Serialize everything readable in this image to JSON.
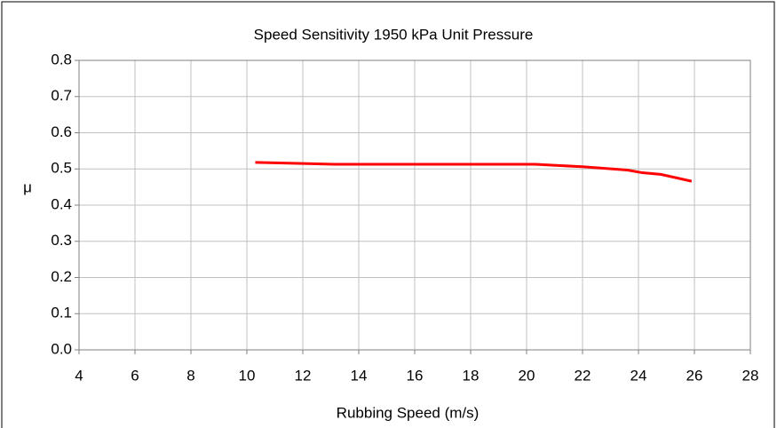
{
  "chart_data": {
    "type": "line",
    "title": "Speed Sensitivity 1950 kPa Unit Pressure",
    "x_label": "Rubbing Speed (m/s)",
    "y_label": "μ",
    "series": [
      {
        "name": "μ",
        "color": "#ff0000",
        "x": [
          10.3,
          12,
          13.1,
          20.3,
          22,
          23.6,
          24.1,
          24.8,
          25.9
        ],
        "values": [
          0.518,
          0.515,
          0.513,
          0.513,
          0.506,
          0.497,
          0.49,
          0.485,
          0.466
        ]
      }
    ],
    "xlim": [
      4,
      28
    ],
    "xticks": [
      4,
      6,
      8,
      10,
      12,
      14,
      16,
      18,
      20,
      22,
      24,
      26,
      28
    ],
    "ylim": [
      0,
      0.8
    ],
    "yticks": [
      {
        "value": 0,
        "label": "0.0"
      },
      0.1,
      0.2,
      0.3,
      0.4,
      0.5,
      0.6,
      0.7,
      0.8
    ],
    "grid": true
  }
}
